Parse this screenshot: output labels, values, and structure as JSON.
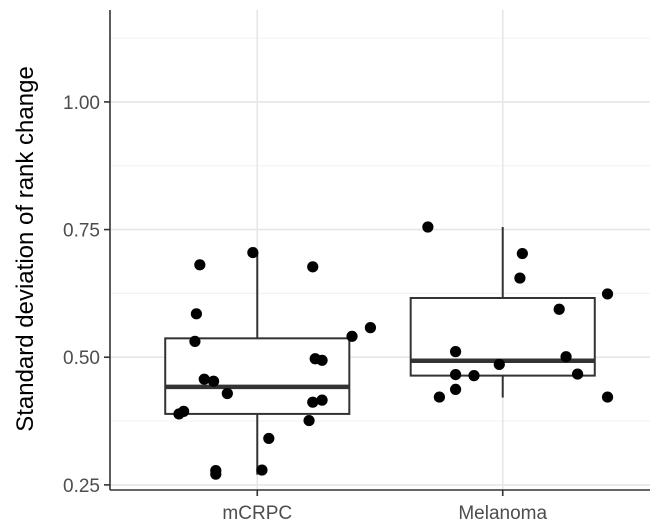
{
  "chart_data": {
    "type": "box",
    "title": "",
    "xlabel": "",
    "ylabel": "Standard deviation of rank change",
    "categories": [
      "mCRPC",
      "Melanoma"
    ],
    "ylim": [
      0.24,
      1.18
    ],
    "yticks": [
      0.25,
      0.5,
      0.75,
      1.0
    ],
    "ytick_labels": [
      "0.25",
      "0.50",
      "0.75",
      "1.00"
    ],
    "grid": true,
    "legend": "none",
    "boxes": [
      {
        "category": "mCRPC",
        "q1": 0.389,
        "median": 0.442,
        "q3": 0.537,
        "whisker_low": 0.27,
        "whisker_high": 0.705
      },
      {
        "category": "Melanoma",
        "q1": 0.464,
        "median": 0.493,
        "q3": 0.616,
        "whisker_low": 0.421,
        "whisker_high": 0.755
      }
    ],
    "points": [
      {
        "category": "mCRPC",
        "x": 0.766,
        "y": 0.681
      },
      {
        "category": "mCRPC",
        "x": 0.982,
        "y": 0.705
      },
      {
        "category": "mCRPC",
        "x": 1.226,
        "y": 0.677
      },
      {
        "category": "mCRPC",
        "x": 0.752,
        "y": 0.585
      },
      {
        "category": "mCRPC",
        "x": 0.746,
        "y": 0.531
      },
      {
        "category": "mCRPC",
        "x": 1.461,
        "y": 0.558
      },
      {
        "category": "mCRPC",
        "x": 1.386,
        "y": 0.541
      },
      {
        "category": "mCRPC",
        "x": 1.236,
        "y": 0.497
      },
      {
        "category": "mCRPC",
        "x": 1.264,
        "y": 0.494
      },
      {
        "category": "mCRPC",
        "x": 0.784,
        "y": 0.457
      },
      {
        "category": "mCRPC",
        "x": 0.822,
        "y": 0.453
      },
      {
        "category": "mCRPC",
        "x": 0.878,
        "y": 0.429
      },
      {
        "category": "mCRPC",
        "x": 1.264,
        "y": 0.416
      },
      {
        "category": "mCRPC",
        "x": 1.226,
        "y": 0.412
      },
      {
        "category": "mCRPC",
        "x": 0.7,
        "y": 0.394
      },
      {
        "category": "mCRPC",
        "x": 0.681,
        "y": 0.389
      },
      {
        "category": "mCRPC",
        "x": 1.211,
        "y": 0.376
      },
      {
        "category": "mCRPC",
        "x": 1.047,
        "y": 0.341
      },
      {
        "category": "mCRPC",
        "x": 0.831,
        "y": 0.278
      },
      {
        "category": "mCRPC",
        "x": 1.019,
        "y": 0.279
      },
      {
        "category": "mCRPC",
        "x": 0.831,
        "y": 0.271
      },
      {
        "category": "Melanoma",
        "x": 1.695,
        "y": 0.755
      },
      {
        "category": "Melanoma",
        "x": 2.08,
        "y": 0.703
      },
      {
        "category": "Melanoma",
        "x": 2.07,
        "y": 0.655
      },
      {
        "category": "Melanoma",
        "x": 2.427,
        "y": 0.624
      },
      {
        "category": "Melanoma",
        "x": 2.23,
        "y": 0.594
      },
      {
        "category": "Melanoma",
        "x": 1.808,
        "y": 0.511
      },
      {
        "category": "Melanoma",
        "x": 2.258,
        "y": 0.501
      },
      {
        "category": "Melanoma",
        "x": 1.986,
        "y": 0.486
      },
      {
        "category": "Melanoma",
        "x": 2.305,
        "y": 0.467
      },
      {
        "category": "Melanoma",
        "x": 1.808,
        "y": 0.466
      },
      {
        "category": "Melanoma",
        "x": 1.883,
        "y": 0.464
      },
      {
        "category": "Melanoma",
        "x": 1.808,
        "y": 0.437
      },
      {
        "category": "Melanoma",
        "x": 1.742,
        "y": 0.422
      },
      {
        "category": "Melanoma",
        "x": 2.427,
        "y": 0.422
      }
    ]
  }
}
